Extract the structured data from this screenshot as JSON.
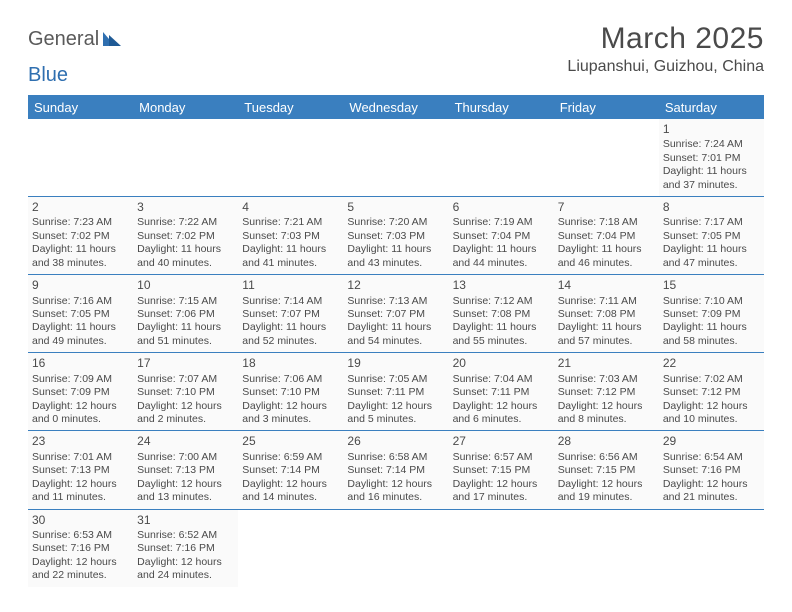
{
  "logo": {
    "text1": "General",
    "text2": "Blue"
  },
  "header": {
    "title": "March 2025",
    "location": "Liupanshui, Guizhou, China"
  },
  "colors": {
    "header_bg": "#3a7fbf",
    "header_text": "#ffffff",
    "divider": "#3a7fbf",
    "cell_bg": "#fafafa",
    "text": "#4a4a4a"
  },
  "dayNames": [
    "Sunday",
    "Monday",
    "Tuesday",
    "Wednesday",
    "Thursday",
    "Friday",
    "Saturday"
  ],
  "startDow": 6,
  "daysInMonth": 31,
  "days": {
    "1": {
      "sunrise": "7:24 AM",
      "sunset": "7:01 PM",
      "dh": 11,
      "dm": 37
    },
    "2": {
      "sunrise": "7:23 AM",
      "sunset": "7:02 PM",
      "dh": 11,
      "dm": 38
    },
    "3": {
      "sunrise": "7:22 AM",
      "sunset": "7:02 PM",
      "dh": 11,
      "dm": 40
    },
    "4": {
      "sunrise": "7:21 AM",
      "sunset": "7:03 PM",
      "dh": 11,
      "dm": 41
    },
    "5": {
      "sunrise": "7:20 AM",
      "sunset": "7:03 PM",
      "dh": 11,
      "dm": 43
    },
    "6": {
      "sunrise": "7:19 AM",
      "sunset": "7:04 PM",
      "dh": 11,
      "dm": 44
    },
    "7": {
      "sunrise": "7:18 AM",
      "sunset": "7:04 PM",
      "dh": 11,
      "dm": 46
    },
    "8": {
      "sunrise": "7:17 AM",
      "sunset": "7:05 PM",
      "dh": 11,
      "dm": 47
    },
    "9": {
      "sunrise": "7:16 AM",
      "sunset": "7:05 PM",
      "dh": 11,
      "dm": 49
    },
    "10": {
      "sunrise": "7:15 AM",
      "sunset": "7:06 PM",
      "dh": 11,
      "dm": 51
    },
    "11": {
      "sunrise": "7:14 AM",
      "sunset": "7:07 PM",
      "dh": 11,
      "dm": 52
    },
    "12": {
      "sunrise": "7:13 AM",
      "sunset": "7:07 PM",
      "dh": 11,
      "dm": 54
    },
    "13": {
      "sunrise": "7:12 AM",
      "sunset": "7:08 PM",
      "dh": 11,
      "dm": 55
    },
    "14": {
      "sunrise": "7:11 AM",
      "sunset": "7:08 PM",
      "dh": 11,
      "dm": 57
    },
    "15": {
      "sunrise": "7:10 AM",
      "sunset": "7:09 PM",
      "dh": 11,
      "dm": 58
    },
    "16": {
      "sunrise": "7:09 AM",
      "sunset": "7:09 PM",
      "dh": 12,
      "dm": 0
    },
    "17": {
      "sunrise": "7:07 AM",
      "sunset": "7:10 PM",
      "dh": 12,
      "dm": 2
    },
    "18": {
      "sunrise": "7:06 AM",
      "sunset": "7:10 PM",
      "dh": 12,
      "dm": 3
    },
    "19": {
      "sunrise": "7:05 AM",
      "sunset": "7:11 PM",
      "dh": 12,
      "dm": 5
    },
    "20": {
      "sunrise": "7:04 AM",
      "sunset": "7:11 PM",
      "dh": 12,
      "dm": 6
    },
    "21": {
      "sunrise": "7:03 AM",
      "sunset": "7:12 PM",
      "dh": 12,
      "dm": 8
    },
    "22": {
      "sunrise": "7:02 AM",
      "sunset": "7:12 PM",
      "dh": 12,
      "dm": 10
    },
    "23": {
      "sunrise": "7:01 AM",
      "sunset": "7:13 PM",
      "dh": 12,
      "dm": 11
    },
    "24": {
      "sunrise": "7:00 AM",
      "sunset": "7:13 PM",
      "dh": 12,
      "dm": 13
    },
    "25": {
      "sunrise": "6:59 AM",
      "sunset": "7:14 PM",
      "dh": 12,
      "dm": 14
    },
    "26": {
      "sunrise": "6:58 AM",
      "sunset": "7:14 PM",
      "dh": 12,
      "dm": 16
    },
    "27": {
      "sunrise": "6:57 AM",
      "sunset": "7:15 PM",
      "dh": 12,
      "dm": 17
    },
    "28": {
      "sunrise": "6:56 AM",
      "sunset": "7:15 PM",
      "dh": 12,
      "dm": 19
    },
    "29": {
      "sunrise": "6:54 AM",
      "sunset": "7:16 PM",
      "dh": 12,
      "dm": 21
    },
    "30": {
      "sunrise": "6:53 AM",
      "sunset": "7:16 PM",
      "dh": 12,
      "dm": 22
    },
    "31": {
      "sunrise": "6:52 AM",
      "sunset": "7:16 PM",
      "dh": 12,
      "dm": 24
    }
  },
  "labels": {
    "sunrise": "Sunrise:",
    "sunset": "Sunset:",
    "daylight": "Daylight:",
    "hours": "hours",
    "and": "and",
    "minutes": "minutes."
  }
}
